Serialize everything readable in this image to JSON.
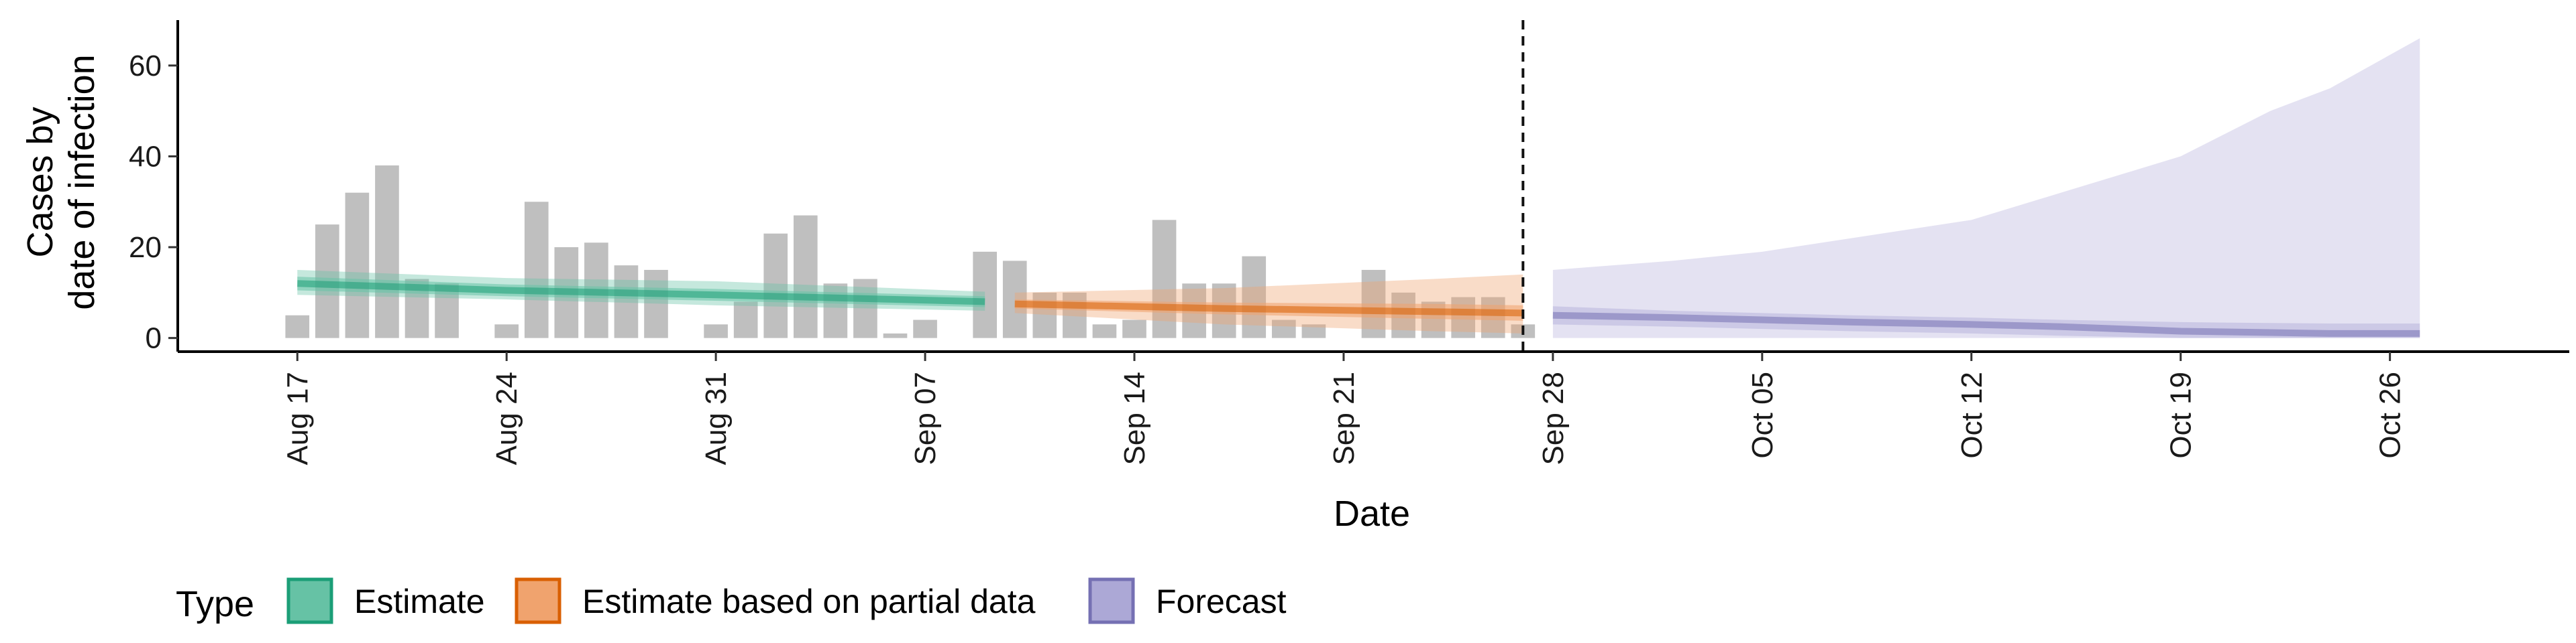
{
  "chart_data": {
    "type": "bar",
    "title": "",
    "xlabel": "Date",
    "ylabel_lines": [
      "Cases by",
      "date of infection"
    ],
    "x_range": [
      "2020-08-13",
      "2020-11-01"
    ],
    "ylim": [
      -3,
      70
    ],
    "y_ticks": [
      0,
      20,
      40,
      60
    ],
    "x_ticks": [
      {
        "date": "2020-08-17",
        "label": "Aug 17"
      },
      {
        "date": "2020-08-24",
        "label": "Aug 24"
      },
      {
        "date": "2020-08-31",
        "label": "Aug 31"
      },
      {
        "date": "2020-09-07",
        "label": "Sep 07"
      },
      {
        "date": "2020-09-14",
        "label": "Sep 14"
      },
      {
        "date": "2020-09-21",
        "label": "Sep 21"
      },
      {
        "date": "2020-09-28",
        "label": "Sep 28"
      },
      {
        "date": "2020-10-05",
        "label": "Oct 05"
      },
      {
        "date": "2020-10-12",
        "label": "Oct 12"
      },
      {
        "date": "2020-10-19",
        "label": "Oct 19"
      },
      {
        "date": "2020-10-26",
        "label": "Oct 26"
      }
    ],
    "grid": false,
    "vline_date": "2020-09-27",
    "cases": {
      "start": "2020-08-17",
      "values": [
        5,
        25,
        32,
        38,
        13,
        12,
        0,
        3,
        30,
        20,
        21,
        16,
        15,
        0,
        3,
        8,
        23,
        27,
        12,
        13,
        1,
        4,
        0,
        19,
        17,
        10,
        10,
        3,
        4,
        26,
        12,
        12,
        18,
        4,
        3,
        0,
        15,
        10,
        8,
        9,
        9,
        3
      ]
    },
    "series": [
      {
        "name": "Estimate",
        "color": "#1b9e77",
        "fill": "#66c2a5",
        "dates": [
          "2020-08-17",
          "2020-08-24",
          "2020-08-31",
          "2020-09-09"
        ],
        "median": [
          12,
          10.5,
          9.5,
          8
        ],
        "inner": [
          [
            10.5,
            13.5
          ],
          [
            9.2,
            11.8
          ],
          [
            8.2,
            10.8
          ],
          [
            6.8,
            9.2
          ]
        ],
        "outer": [
          [
            9.5,
            15
          ],
          [
            8.5,
            13.2
          ],
          [
            7.2,
            12.5
          ],
          [
            6,
            10.2
          ]
        ]
      },
      {
        "name": "Estimate based on partial data",
        "color": "#d95f02",
        "fill": "#f0a36e",
        "dates": [
          "2020-09-10",
          "2020-09-17",
          "2020-09-24",
          "2020-09-27"
        ],
        "median": [
          7.5,
          6.5,
          5.8,
          5.5
        ],
        "inner": [
          [
            6.5,
            8.5
          ],
          [
            5.2,
            7.8
          ],
          [
            4.2,
            7.5
          ],
          [
            3.8,
            7.2
          ]
        ],
        "outer": [
          [
            5.5,
            10
          ],
          [
            3,
            11
          ],
          [
            1.5,
            13
          ],
          [
            1,
            14
          ]
        ]
      },
      {
        "name": "Forecast",
        "color": "#7570b3",
        "fill": "#b8b4dc",
        "dates": [
          "2020-09-28",
          "2020-10-02",
          "2020-10-05",
          "2020-10-08",
          "2020-10-12",
          "2020-10-15",
          "2020-10-19",
          "2020-10-22",
          "2020-10-24",
          "2020-10-27"
        ],
        "median": [
          5,
          4.5,
          4,
          3.5,
          3,
          2.5,
          1.5,
          1.2,
          1,
          1
        ],
        "inner": [
          [
            3,
            7
          ],
          [
            2.5,
            6
          ],
          [
            2,
            5.5
          ],
          [
            1.5,
            5
          ],
          [
            1,
            4.5
          ],
          [
            0.5,
            4
          ],
          [
            0,
            3.5
          ],
          [
            0,
            3.3
          ],
          [
            0,
            3.2
          ],
          [
            0,
            3.2
          ]
        ],
        "outer": [
          [
            0,
            15
          ],
          [
            0,
            17
          ],
          [
            0,
            19
          ],
          [
            0,
            22
          ],
          [
            0,
            26
          ],
          [
            0,
            32
          ],
          [
            0,
            40
          ],
          [
            0,
            50
          ],
          [
            0,
            55
          ],
          [
            0,
            66
          ]
        ]
      }
    ],
    "legend": {
      "title": "Type",
      "position": "bottom-left",
      "entries": [
        {
          "label": "Estimate",
          "fill": "#66c2a5",
          "border": "#1b9e77"
        },
        {
          "label": "Estimate based on partial data",
          "fill": "#f0a36e",
          "border": "#d95f02"
        },
        {
          "label": "Forecast",
          "fill": "#aca8d6",
          "border": "#7570b3"
        }
      ]
    },
    "bar_color": "#bfbfbf"
  }
}
